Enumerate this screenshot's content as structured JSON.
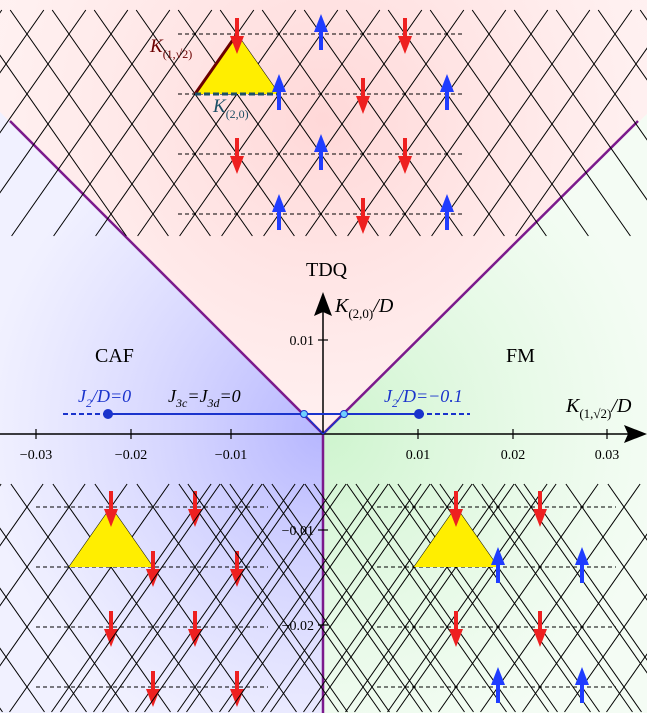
{
  "phases": {
    "tdq": "TDQ",
    "caf": "CAF",
    "fm": "FM"
  },
  "axes": {
    "x_label_base": "K",
    "x_label_sub": "(1,√2)",
    "x_label_tail": "/D",
    "y_label_base": "K",
    "y_label_sub": "(2,0)",
    "y_label_tail": "/D",
    "x_ticks": [
      "−0.03",
      "−0.02",
      "−0.01",
      "0.01",
      "0.02",
      "0.03"
    ],
    "y_ticks": [
      "0.01",
      "−0.01",
      "−0.02"
    ]
  },
  "path": {
    "left_label_main": "J",
    "left_label_sub": "2",
    "left_label_tail": "/D=0",
    "mid_label_a": "J",
    "mid_label_a_sub": "3c",
    "mid_label_eq1": "=J",
    "mid_label_b_sub": "3d",
    "mid_label_eq2": "=0",
    "right_label_main": "J",
    "right_label_sub": "2",
    "right_label_tail": "/D=−0.1"
  },
  "lattice_labels": {
    "k1_base": "K",
    "k1_sub": "(1,√2)",
    "k2_base": "K",
    "k2_sub": "(2,0)"
  },
  "colors": {
    "boundary": "#7b1a8c",
    "up_spin": "#1f3cff",
    "down_spin": "#ee2020",
    "triangle": "#ffee00",
    "path": "#1a33cc"
  }
}
